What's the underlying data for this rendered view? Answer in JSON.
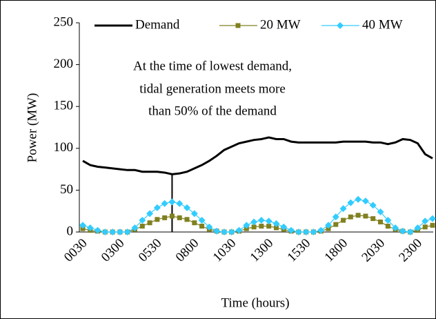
{
  "chart_data": {
    "type": "line",
    "y_label": "Power (MW)",
    "x_label": "Time (hours)",
    "annotation": [
      "At the time of lowest demand,",
      "tidal generation meets more",
      "than 50% of the demand"
    ],
    "categories": [
      "0030",
      null,
      null,
      null,
      null,
      "0300",
      null,
      null,
      null,
      null,
      "0530",
      null,
      null,
      null,
      null,
      "0800",
      null,
      null,
      null,
      null,
      "1030",
      null,
      null,
      null,
      null,
      "1300",
      null,
      null,
      null,
      null,
      "1530",
      null,
      null,
      null,
      null,
      "1800",
      null,
      null,
      null,
      null,
      "2030",
      null,
      null,
      null,
      null,
      "2300",
      null,
      null
    ],
    "ylim": [
      0,
      250
    ],
    "yticks": [
      0,
      50,
      100,
      150,
      200,
      250
    ],
    "legend": "top",
    "series": [
      {
        "name": "Demand",
        "color": "#000000",
        "marker": "none",
        "values": [
          85,
          80,
          78,
          77,
          76,
          75,
          74,
          74,
          72,
          72,
          72,
          71,
          69,
          70,
          72,
          76,
          80,
          85,
          91,
          98,
          102,
          106,
          108,
          110,
          111,
          113,
          111,
          111,
          108,
          107,
          107,
          107,
          107,
          107,
          107,
          108,
          108,
          108,
          108,
          107,
          107,
          105,
          107,
          111,
          110,
          106,
          93,
          88
        ]
      },
      {
        "name": "20 MW",
        "color": "#808020",
        "marker": "square",
        "values": [
          4,
          2,
          1,
          0,
          0,
          0,
          0,
          3,
          7,
          11,
          15,
          17,
          19,
          17,
          15,
          11,
          7,
          3,
          1,
          0,
          0,
          1,
          4,
          6,
          7,
          7,
          5,
          3,
          1,
          0,
          0,
          0,
          1,
          4,
          9,
          14,
          18,
          20,
          19,
          16,
          12,
          7,
          3,
          1,
          0,
          2,
          6,
          8
        ]
      },
      {
        "name": "40 MW",
        "color": "#33ccff",
        "marker": "diamond",
        "values": [
          8,
          5,
          2,
          0,
          0,
          0,
          0,
          5,
          14,
          22,
          29,
          34,
          36,
          34,
          29,
          22,
          14,
          6,
          1,
          0,
          0,
          2,
          8,
          12,
          14,
          13,
          10,
          6,
          2,
          0,
          0,
          0,
          2,
          8,
          18,
          28,
          35,
          39,
          37,
          32,
          24,
          14,
          5,
          1,
          0,
          5,
          13,
          16
        ]
      }
    ]
  }
}
